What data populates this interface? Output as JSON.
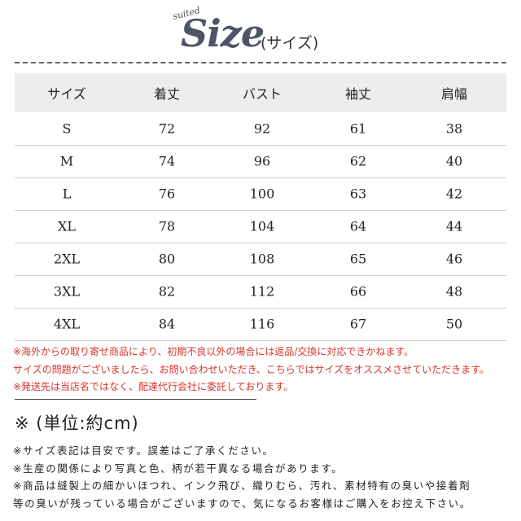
{
  "header": {
    "tag": "suited",
    "title": "Size",
    "subtitle": "(サイズ)"
  },
  "table": {
    "columns": [
      "サイズ",
      "着丈",
      "バスト",
      "袖丈",
      "肩幅"
    ],
    "rows": [
      [
        "S",
        72,
        92,
        61,
        38
      ],
      [
        "M",
        74,
        96,
        62,
        40
      ],
      [
        "L",
        76,
        100,
        63,
        42
      ],
      [
        "XL",
        78,
        104,
        64,
        44
      ],
      [
        "2XL",
        80,
        108,
        65,
        46
      ],
      [
        "3XL",
        82,
        112,
        66,
        48
      ],
      [
        "4XL",
        84,
        116,
        67,
        50
      ]
    ]
  },
  "warnings": [
    "※海外からの取り寄せ商品により、初期不良以外の場合には返品/交換に対応できかねます。",
    "サイズの問題がございましたら、お問い合わせいただき、こちらではサイズをオススメさせていただきます。",
    "※発送先は当店名ではなく、配達代行会社に委託しております。"
  ],
  "unit": "※ (単位:約cm)",
  "notes": [
    "※サイズ表記は目安です。誤差はご了承ください。",
    "※生産の関係により写真と色、柄が若干異なる場合があります。",
    "※商品は縫製上の細かいほつれ、インク飛び、織りむら、汚れ、素材特有の臭いや接着剤",
    "等の臭いが残っている場合がございますので、気になるお客様はご購入をお控え下さい。"
  ]
}
